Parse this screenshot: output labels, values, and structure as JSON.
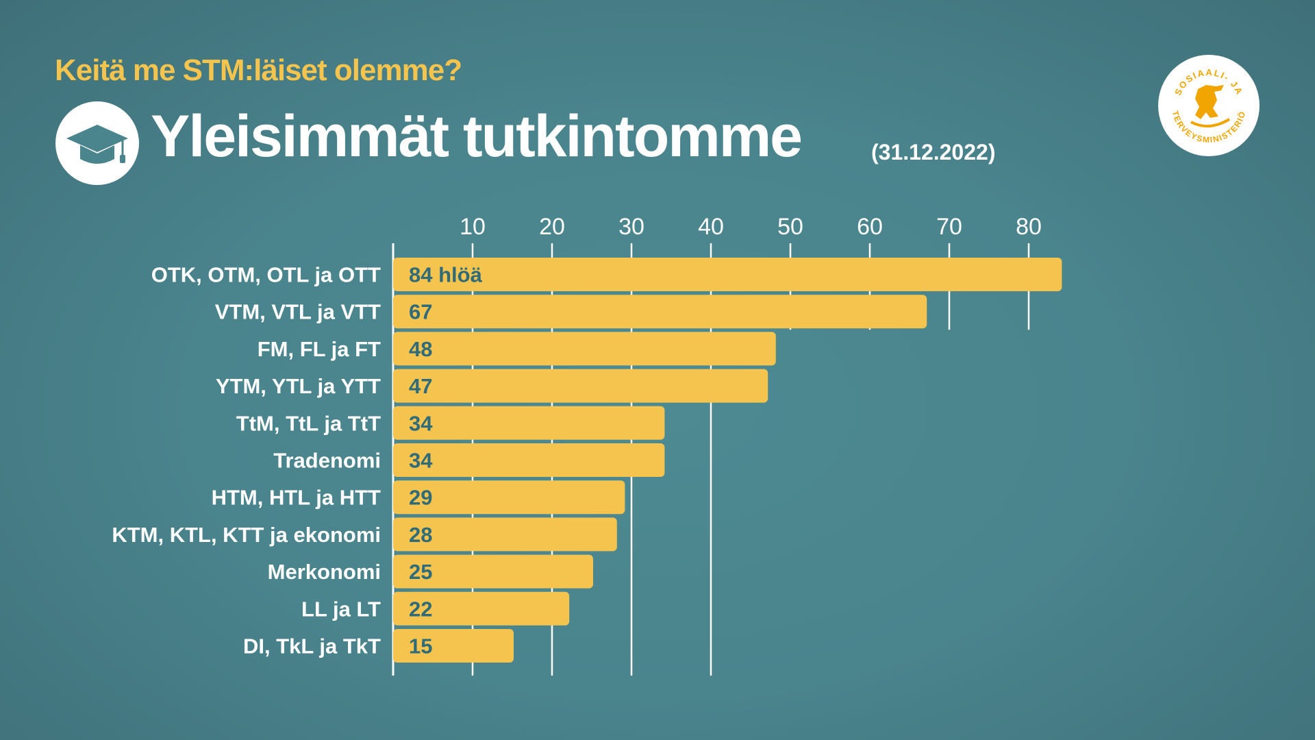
{
  "header": {
    "subtitle": "Keitä me STM:läiset olemme?",
    "title": "Yleisimmät tutkintomme",
    "date": "(31.12.2022)"
  },
  "logo": {
    "text_top": "SOSIAALI- JA",
    "text_bottom": "TERVEYSMINISTERIÖ"
  },
  "colors": {
    "bar": "#f4c44e",
    "value_text": "#2f6b78",
    "title_accent": "#f4c44e"
  },
  "chart_data": {
    "type": "bar",
    "orientation": "horizontal",
    "title": "Yleisimmät tutkintomme (31.12.2022)",
    "categories": [
      "OTK, OTM, OTL ja OTT",
      "VTM, VTL ja VTT",
      "FM, FL ja FT",
      "YTM, YTL ja YTT",
      "TtM, TtL ja TtT",
      "Tradenomi",
      "HTM, HTL ja HTT",
      "KTM, KTL, KTT ja ekonomi",
      "Merkonomi",
      "LL ja LT",
      "DI, TkL ja TkT"
    ],
    "values": [
      84,
      67,
      48,
      47,
      34,
      34,
      29,
      28,
      25,
      22,
      15
    ],
    "value_labels": [
      "84 hlöä",
      "67",
      "48",
      "47",
      "34",
      "34",
      "29",
      "28",
      "25",
      "22",
      "15"
    ],
    "xticks": [
      10,
      20,
      30,
      40,
      50,
      60,
      70,
      80
    ],
    "xlim": [
      0,
      85
    ],
    "grid": true,
    "tick_position": "top",
    "unit": "hlöä"
  }
}
